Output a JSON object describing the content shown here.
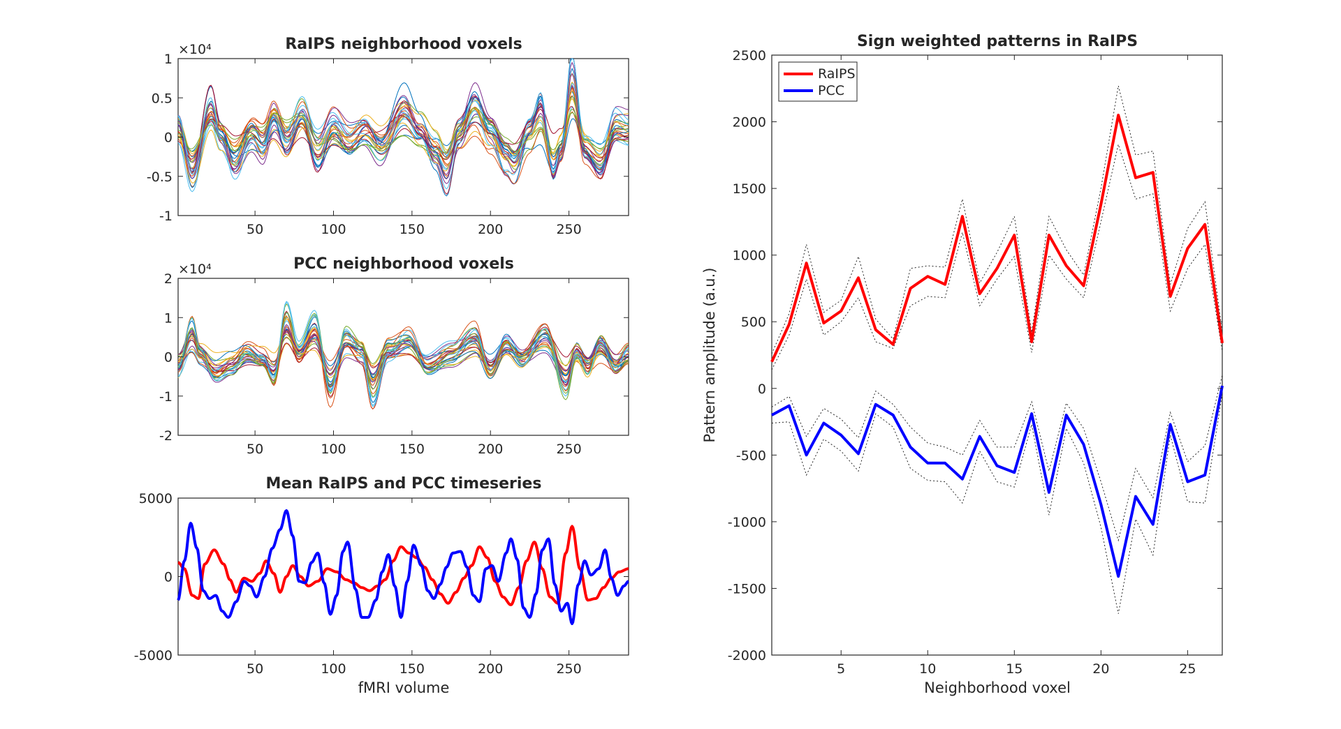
{
  "figure": {
    "background": "#ffffff"
  },
  "chart_data": [
    {
      "id": "raips_voxels",
      "type": "line",
      "title": "RaIPS neighborhood voxels",
      "xlabel": "",
      "ylabel": "",
      "xlim": [
        1,
        288
      ],
      "ylim": [
        -1,
        1
      ],
      "y_exponent": "×10⁴",
      "x_ticks": [
        50,
        100,
        150,
        200,
        250
      ],
      "y_ticks": [
        -1,
        -0.5,
        0,
        0.5,
        1
      ],
      "y_tick_labels": [
        "-1",
        "-0.5",
        "0",
        "0.5",
        "1"
      ],
      "n_series": 27,
      "series_colors": [
        "#0072BD",
        "#D95319",
        "#EDB120",
        "#7E2F8E",
        "#77AC30",
        "#4DBEEE",
        "#A2142F"
      ],
      "amplitude_scale": 0.22,
      "envelope": [
        [
          1,
          0.15
        ],
        [
          10,
          -0.45
        ],
        [
          22,
          0.4
        ],
        [
          28,
          0.05
        ],
        [
          37,
          -0.3
        ],
        [
          48,
          0.05
        ],
        [
          55,
          -0.1
        ],
        [
          62,
          0.25
        ],
        [
          70,
          -0.05
        ],
        [
          80,
          0.3
        ],
        [
          90,
          -0.2
        ],
        [
          100,
          0.15
        ],
        [
          110,
          -0.05
        ],
        [
          120,
          0.1
        ],
        [
          130,
          -0.1
        ],
        [
          145,
          0.38
        ],
        [
          155,
          0.1
        ],
        [
          165,
          -0.2
        ],
        [
          172,
          -0.45
        ],
        [
          180,
          0.05
        ],
        [
          190,
          0.42
        ],
        [
          200,
          0.05
        ],
        [
          210,
          -0.3
        ],
        [
          215,
          -0.4
        ],
        [
          225,
          0.05
        ],
        [
          232,
          0.35
        ],
        [
          240,
          -0.45
        ],
        [
          245,
          -0.2
        ],
        [
          252,
          0.72
        ],
        [
          260,
          -0.15
        ],
        [
          270,
          -0.35
        ],
        [
          280,
          0.15
        ],
        [
          288,
          0.1
        ]
      ]
    },
    {
      "id": "pcc_voxels",
      "type": "line",
      "title": "PCC neighborhood voxels",
      "xlabel": "",
      "ylabel": "",
      "xlim": [
        1,
        288
      ],
      "ylim": [
        -2,
        2
      ],
      "y_exponent": "×10⁴",
      "x_ticks": [
        50,
        100,
        150,
        200,
        250
      ],
      "y_ticks": [
        -2,
        -1,
        0,
        1,
        2
      ],
      "y_tick_labels": [
        "-2",
        "-1",
        "0",
        "1",
        "2"
      ],
      "n_series": 27,
      "series_colors": [
        "#0072BD",
        "#D95319",
        "#EDB120",
        "#7E2F8E",
        "#77AC30",
        "#4DBEEE",
        "#A2142F"
      ],
      "amplitude_scale": 0.28,
      "envelope": [
        [
          1,
          -0.3
        ],
        [
          10,
          0.65
        ],
        [
          15,
          0.1
        ],
        [
          25,
          -0.4
        ],
        [
          35,
          -0.2
        ],
        [
          45,
          0.1
        ],
        [
          55,
          -0.1
        ],
        [
          62,
          -0.5
        ],
        [
          70,
          0.95
        ],
        [
          78,
          0.1
        ],
        [
          88,
          0.7
        ],
        [
          98,
          -0.85
        ],
        [
          108,
          0.4
        ],
        [
          118,
          0.1
        ],
        [
          125,
          -0.85
        ],
        [
          135,
          0.2
        ],
        [
          148,
          0.5
        ],
        [
          160,
          -0.2
        ],
        [
          175,
          0.1
        ],
        [
          190,
          0.5
        ],
        [
          200,
          -0.35
        ],
        [
          210,
          0.3
        ],
        [
          220,
          -0.1
        ],
        [
          235,
          0.6
        ],
        [
          248,
          -0.6
        ],
        [
          255,
          0.2
        ],
        [
          262,
          -0.2
        ],
        [
          270,
          0.4
        ],
        [
          280,
          -0.2
        ],
        [
          288,
          0.1
        ]
      ]
    },
    {
      "id": "mean_timeseries",
      "type": "line",
      "title": "Mean RaIPS and PCC timeseries",
      "xlabel": "fMRI volume",
      "ylabel": "",
      "xlim": [
        1,
        288
      ],
      "ylim": [
        -5000,
        5000
      ],
      "x_ticks": [
        50,
        100,
        150,
        200,
        250
      ],
      "y_ticks": [
        -5000,
        0,
        5000
      ],
      "y_tick_labels": [
        "-5000",
        "0",
        "5000"
      ],
      "series": [
        {
          "name": "RaIPS",
          "color": "#FF0000",
          "points": [
            [
              1,
              900
            ],
            [
              5,
              500
            ],
            [
              10,
              -1200
            ],
            [
              14,
              -1400
            ],
            [
              18,
              800
            ],
            [
              24,
              1700
            ],
            [
              30,
              800
            ],
            [
              34,
              -200
            ],
            [
              38,
              -1000
            ],
            [
              43,
              -100
            ],
            [
              48,
              -300
            ],
            [
              53,
              200
            ],
            [
              57,
              1000
            ],
            [
              62,
              200
            ],
            [
              66,
              -1000
            ],
            [
              70,
              0
            ],
            [
              74,
              700
            ],
            [
              79,
              0
            ],
            [
              84,
              -600
            ],
            [
              90,
              -300
            ],
            [
              96,
              500
            ],
            [
              102,
              300
            ],
            [
              108,
              -200
            ],
            [
              113,
              -400
            ],
            [
              118,
              -700
            ],
            [
              123,
              -900
            ],
            [
              128,
              -600
            ],
            [
              133,
              -200
            ],
            [
              138,
              1000
            ],
            [
              143,
              1900
            ],
            [
              148,
              1500
            ],
            [
              153,
              1200
            ],
            [
              158,
              600
            ],
            [
              163,
              -200
            ],
            [
              168,
              -1100
            ],
            [
              173,
              -1700
            ],
            [
              178,
              -1000
            ],
            [
              183,
              -100
            ],
            [
              188,
              700
            ],
            [
              193,
              1900
            ],
            [
              198,
              1200
            ],
            [
              203,
              -300
            ],
            [
              208,
              -1300
            ],
            [
              213,
              -1800
            ],
            [
              218,
              -700
            ],
            [
              223,
              1000
            ],
            [
              228,
              2200
            ],
            [
              233,
              500
            ],
            [
              238,
              -1300
            ],
            [
              243,
              -1700
            ],
            [
              248,
              1500
            ],
            [
              252,
              3200
            ],
            [
              257,
              500
            ],
            [
              262,
              -1500
            ],
            [
              267,
              -1400
            ],
            [
              272,
              -700
            ],
            [
              277,
              -100
            ],
            [
              282,
              300
            ],
            [
              288,
              500
            ]
          ]
        },
        {
          "name": "PCC",
          "color": "#0000FF",
          "points": [
            [
              1,
              -1500
            ],
            [
              5,
              1000
            ],
            [
              9,
              3400
            ],
            [
              13,
              1800
            ],
            [
              17,
              -900
            ],
            [
              21,
              -1400
            ],
            [
              25,
              -1200
            ],
            [
              29,
              -2200
            ],
            [
              33,
              -2600
            ],
            [
              38,
              -1600
            ],
            [
              43,
              -300
            ],
            [
              47,
              -600
            ],
            [
              51,
              -1300
            ],
            [
              56,
              0
            ],
            [
              61,
              1800
            ],
            [
              66,
              3000
            ],
            [
              70,
              4200
            ],
            [
              74,
              2600
            ],
            [
              78,
              -300
            ],
            [
              82,
              -400
            ],
            [
              86,
              900
            ],
            [
              90,
              1500
            ],
            [
              94,
              -400
            ],
            [
              98,
              -2400
            ],
            [
              102,
              -1200
            ],
            [
              106,
              1600
            ],
            [
              109,
              2200
            ],
            [
              114,
              -800
            ],
            [
              118,
              -2600
            ],
            [
              122,
              -2600
            ],
            [
              127,
              -1500
            ],
            [
              131,
              300
            ],
            [
              135,
              1400
            ],
            [
              139,
              -600
            ],
            [
              143,
              -2600
            ],
            [
              147,
              -300
            ],
            [
              151,
              2000
            ],
            [
              156,
              700
            ],
            [
              160,
              -900
            ],
            [
              164,
              -1400
            ],
            [
              168,
              -500
            ],
            [
              172,
              600
            ],
            [
              176,
              1500
            ],
            [
              181,
              1600
            ],
            [
              185,
              600
            ],
            [
              189,
              -1200
            ],
            [
              193,
              -1600
            ],
            [
              197,
              500
            ],
            [
              201,
              700
            ],
            [
              205,
              -300
            ],
            [
              210,
              1500
            ],
            [
              213,
              2400
            ],
            [
              217,
              1100
            ],
            [
              221,
              -2000
            ],
            [
              225,
              -2600
            ],
            [
              229,
              -1100
            ],
            [
              233,
              1700
            ],
            [
              237,
              2400
            ],
            [
              241,
              -500
            ],
            [
              245,
              -2200
            ],
            [
              249,
              -1700
            ],
            [
              252,
              -3000
            ],
            [
              256,
              -500
            ],
            [
              260,
              1000
            ],
            [
              264,
              100
            ],
            [
              269,
              500
            ],
            [
              273,
              1700
            ],
            [
              277,
              -100
            ],
            [
              281,
              -1200
            ],
            [
              285,
              -600
            ],
            [
              288,
              -300
            ]
          ]
        }
      ]
    },
    {
      "id": "sign_weighted_patterns",
      "type": "line",
      "title": "Sign weighted patterns in RaIPS",
      "xlabel": "Neighborhood voxel",
      "ylabel": "Pattern amplitude (a.u.)",
      "xlim": [
        1,
        27
      ],
      "ylim": [
        -2000,
        2500
      ],
      "x_ticks": [
        5,
        10,
        15,
        20,
        25
      ],
      "y_ticks": [
        -2000,
        -1500,
        -1000,
        -500,
        0,
        500,
        1000,
        1500,
        2000,
        2500
      ],
      "y_tick_labels": [
        "-2000",
        "-1500",
        "-1000",
        "-500",
        "0",
        "500",
        "1000",
        "1500",
        "2000",
        "2500"
      ],
      "legend_position": "top-left",
      "legend": [
        "RaIPS",
        "PCC"
      ],
      "confidence_band": "dotted",
      "series": [
        {
          "name": "RaIPS",
          "color": "#FF0000",
          "x": [
            1,
            2,
            3,
            4,
            5,
            6,
            7,
            8,
            9,
            10,
            11,
            12,
            13,
            14,
            15,
            16,
            17,
            18,
            19,
            20,
            21,
            22,
            23,
            24,
            25,
            26,
            27
          ],
          "y": [
            200,
            480,
            940,
            490,
            580,
            830,
            440,
            330,
            750,
            840,
            780,
            1290,
            710,
            900,
            1150,
            350,
            1150,
            920,
            770,
            1380,
            2050,
            1580,
            1620,
            690,
            1050,
            1230,
            340
          ],
          "lower": [
            140,
            400,
            820,
            400,
            500,
            680,
            350,
            300,
            620,
            690,
            680,
            1170,
            620,
            820,
            990,
            270,
            1000,
            820,
            680,
            1250,
            1830,
            1420,
            1460,
            580,
            900,
            1080,
            280
          ],
          "upper": [
            260,
            560,
            1080,
            570,
            660,
            990,
            520,
            370,
            900,
            920,
            910,
            1420,
            790,
            1020,
            1290,
            420,
            1290,
            1040,
            850,
            1500,
            2270,
            1750,
            1780,
            780,
            1200,
            1400,
            420
          ]
        },
        {
          "name": "PCC",
          "color": "#0000FF",
          "x": [
            1,
            2,
            3,
            4,
            5,
            6,
            7,
            8,
            9,
            10,
            11,
            12,
            13,
            14,
            15,
            16,
            17,
            18,
            19,
            20,
            21,
            22,
            23,
            24,
            25,
            26,
            27
          ],
          "y": [
            -200,
            -130,
            -500,
            -260,
            -350,
            -490,
            -120,
            -200,
            -440,
            -560,
            -560,
            -680,
            -360,
            -580,
            -630,
            -190,
            -780,
            -200,
            -420,
            -870,
            -1410,
            -810,
            -1020,
            -270,
            -700,
            -650,
            20
          ],
          "lower": [
            -260,
            -250,
            -650,
            -380,
            -470,
            -620,
            -190,
            -290,
            -600,
            -690,
            -700,
            -860,
            -470,
            -700,
            -740,
            -270,
            -950,
            -300,
            -560,
            -1040,
            -1690,
            -980,
            -1250,
            -350,
            -850,
            -860,
            -40
          ],
          "upper": [
            -140,
            -60,
            -360,
            -150,
            -230,
            -370,
            -20,
            -120,
            -290,
            -410,
            -440,
            -500,
            -240,
            -440,
            -440,
            -100,
            -620,
            -110,
            -300,
            -700,
            -1140,
            -600,
            -820,
            -180,
            -550,
            -430,
            100
          ]
        }
      ]
    }
  ]
}
